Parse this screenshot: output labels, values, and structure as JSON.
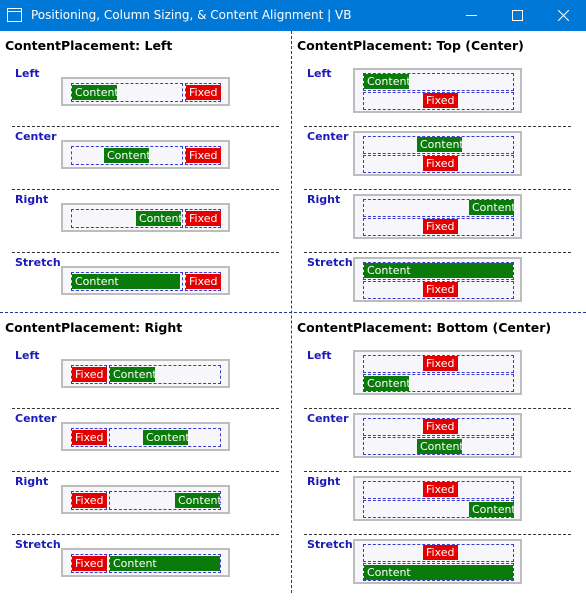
{
  "window": {
    "title": "Positioning, Column Sizing, & Content Alignment  |  VB",
    "accent": "#0078d7",
    "minimize_icon": "minimize-icon",
    "maximize_icon": "maximize-icon",
    "close_icon": "close-icon"
  },
  "colors": {
    "content": "#0a7a0a",
    "fixed": "#e30000",
    "label": "#1a1ab8"
  },
  "quadrants": [
    {
      "title": "ContentPlacement: Left",
      "rows": [
        "Left",
        "Center",
        "Right",
        "Stretch"
      ]
    },
    {
      "title": "ContentPlacement: Top (Center)",
      "rows": [
        "Left",
        "Center",
        "Right",
        "Stretch"
      ]
    },
    {
      "title": "ContentPlacement: Right",
      "rows": [
        "Left",
        "Center",
        "Right",
        "Stretch"
      ]
    },
    {
      "title": "ContentPlacement: Bottom (Center)",
      "rows": [
        "Left",
        "Center",
        "Right",
        "Stretch"
      ]
    }
  ],
  "labels": {
    "content": "Content",
    "fixed": "Fixed"
  }
}
